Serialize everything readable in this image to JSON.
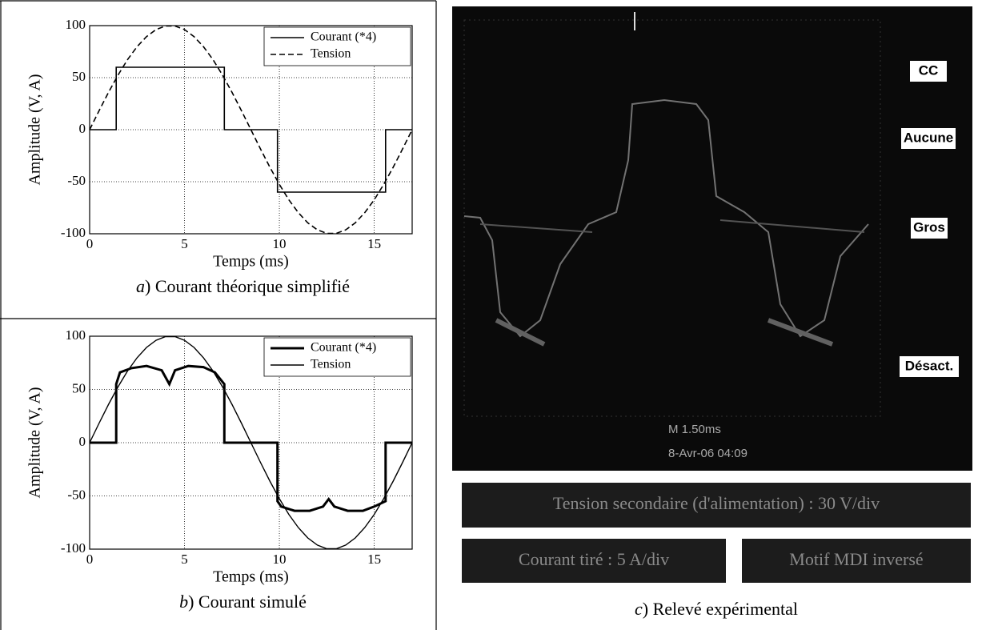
{
  "chart_data": [
    {
      "type": "line",
      "ylabel": "Amplitude (V, A)",
      "xlabel": "Temps (ms)",
      "caption_letter": "a",
      "caption": ") Courant théorique simplifié",
      "xlim": [
        0,
        17
      ],
      "ylim": [
        -100,
        100
      ],
      "xticks": [
        0,
        5,
        10,
        15
      ],
      "yticks": [
        -100,
        -50,
        0,
        50,
        100
      ],
      "grid": true,
      "legend": "upper right",
      "series": [
        {
          "name": "Courant (*4)",
          "color": "#000000",
          "dash": "solid",
          "width": 1.6,
          "x": [
            0,
            1.4,
            1.4,
            7.1,
            7.1,
            9.9,
            9.9,
            15.6,
            15.6,
            17
          ],
          "values": [
            0,
            0,
            60,
            60,
            0,
            0,
            -60,
            -60,
            0,
            0
          ]
        },
        {
          "name": "Tension",
          "color": "#000000",
          "dash": "dashed",
          "width": 1.6,
          "x": [
            0,
            0.5,
            1,
            1.5,
            2,
            2.5,
            3,
            3.5,
            4,
            4.5,
            5,
            5.5,
            6,
            6.5,
            7,
            7.5,
            8,
            8.5,
            9,
            9.5,
            10,
            10.5,
            11,
            11.5,
            12,
            12.5,
            13,
            13.5,
            14,
            14.5,
            15,
            15.5,
            16,
            16.5,
            17
          ],
          "values": [
            0,
            18.4,
            36.1,
            52.6,
            67.4,
            79.8,
            89.5,
            96.2,
            99.6,
            99.6,
            96.2,
            89.5,
            79.8,
            67.4,
            52.6,
            36.1,
            18.4,
            0,
            -18.4,
            -36.1,
            -52.6,
            -67.4,
            -79.8,
            -89.5,
            -96.2,
            -99.6,
            -99.6,
            -96.2,
            -89.5,
            -79.8,
            -67.4,
            -52.6,
            -36.1,
            -18.4,
            0
          ]
        }
      ]
    },
    {
      "type": "line",
      "ylabel": "Amplitude (V, A)",
      "xlabel": "Temps (ms)",
      "caption_letter": "b",
      "caption": ") Courant simulé",
      "xlim": [
        0,
        17
      ],
      "ylim": [
        -100,
        100
      ],
      "xticks": [
        0,
        5,
        10,
        15
      ],
      "yticks": [
        -100,
        -50,
        0,
        50,
        100
      ],
      "grid": true,
      "legend": "upper right",
      "series": [
        {
          "name": "Courant (*4)",
          "color": "#000000",
          "dash": "solid",
          "width": 3,
          "x": [
            0,
            1.4,
            1.4,
            1.6,
            2.2,
            3,
            3.8,
            4.2,
            4.5,
            5.2,
            6,
            6.6,
            7.1,
            7.1,
            9.9,
            9.9,
            10.1,
            10.8,
            11.6,
            12.3,
            12.6,
            12.9,
            13.6,
            14.4,
            15,
            15.6,
            15.6,
            17
          ],
          "values": [
            0,
            0,
            55,
            66,
            70,
            72,
            68,
            55,
            68,
            72,
            71,
            66,
            55,
            0,
            0,
            -55,
            -60,
            -64,
            -64,
            -60,
            -53,
            -60,
            -64,
            -64,
            -60,
            -55,
            0,
            0
          ]
        },
        {
          "name": "Tension",
          "color": "#000000",
          "dash": "solid",
          "width": 1.4,
          "x": [
            0,
            0.5,
            1,
            1.5,
            2,
            2.5,
            3,
            3.5,
            4,
            4.5,
            5,
            5.5,
            6,
            6.5,
            7,
            7.5,
            8,
            8.5,
            9,
            9.5,
            10,
            10.5,
            11,
            11.5,
            12,
            12.5,
            13,
            13.5,
            14,
            14.5,
            15,
            15.5,
            16,
            16.5,
            17
          ],
          "values": [
            0,
            18.4,
            36.1,
            52.6,
            67.4,
            79.8,
            89.5,
            96.2,
            99.6,
            99.6,
            96.2,
            89.5,
            79.8,
            67.4,
            52.6,
            36.1,
            18.4,
            0,
            -18.4,
            -36.1,
            -52.6,
            -67.4,
            -79.8,
            -89.5,
            -96.2,
            -99.6,
            -99.6,
            -96.2,
            -89.5,
            -79.8,
            -67.4,
            -52.6,
            -36.1,
            -18.4,
            0
          ]
        }
      ]
    }
  ],
  "scope": {
    "menu": [
      "CC",
      "Aucune",
      "Gros",
      "Désact."
    ],
    "timebase": "M 1.50ms",
    "date": "8-Avr-06 04:09"
  },
  "legend_boxes": [
    "Tension secondaire (d'alimentation) : 30 V/div",
    "Courant tiré : 5 A/div",
    "Motif MDI inversé"
  ],
  "caption_letter": "c",
  "caption": ") Relevé expérimental"
}
